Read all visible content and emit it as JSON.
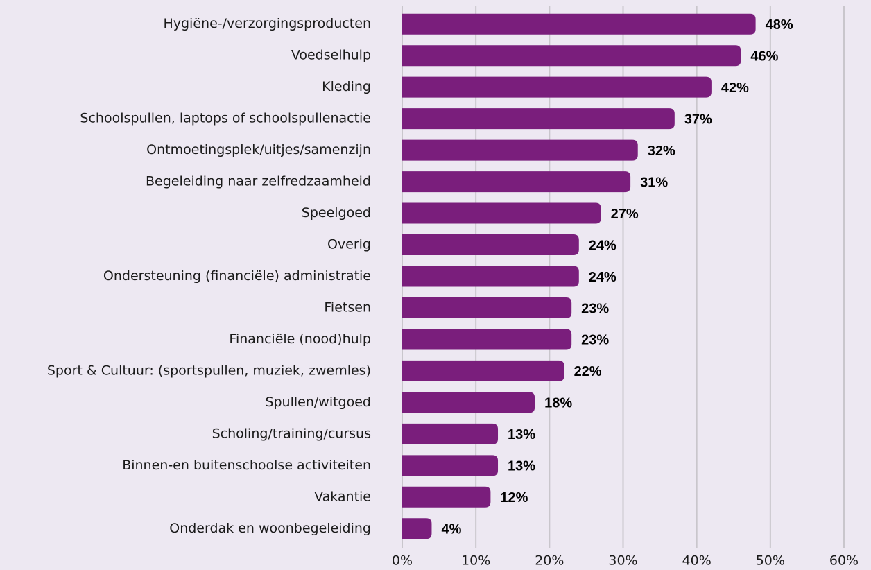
{
  "chart_data": {
    "type": "barh",
    "categories": [
      "Hygiëne-/verzorgingsproducten",
      "Voedselhulp",
      "Kleding",
      "Schoolspullen, laptops of schoolspullenactie",
      "Ontmoetingsplek/uitjes/samenzijn",
      "Begeleiding naar zelfredzaamheid",
      "Speelgoed",
      "Overig",
      "Ondersteuning (financiële) administratie",
      "Fietsen",
      "Financiële (nood)hulp",
      "Sport & Cultuur: (sportspullen, muziek, zwemles)",
      "Spullen/witgoed",
      "Scholing/training/cursus",
      "Binnen-en buitenschoolse activiteiten",
      "Vakantie",
      "Onderdak en woonbegeleiding"
    ],
    "values": [
      48,
      46,
      42,
      37,
      32,
      31,
      27,
      24,
      24,
      23,
      23,
      22,
      18,
      13,
      13,
      12,
      4
    ],
    "value_labels": [
      "48%",
      "46%",
      "42%",
      "37%",
      "32%",
      "31%",
      "27%",
      "24%",
      "24%",
      "23%",
      "23%",
      "22%",
      "18%",
      "13%",
      "13%",
      "12%",
      "4%"
    ],
    "color": "#7a1e7c",
    "xlim": [
      0,
      60
    ],
    "xticks": [
      {
        "value": 0,
        "label": "0%"
      },
      {
        "value": 10,
        "label": "10%"
      },
      {
        "value": 20,
        "label": "20%"
      },
      {
        "value": 30,
        "label": "30%"
      },
      {
        "value": 40,
        "label": "40%"
      },
      {
        "value": 50,
        "label": "50%"
      },
      {
        "value": 60,
        "label": "60%"
      }
    ],
    "grid": true
  }
}
